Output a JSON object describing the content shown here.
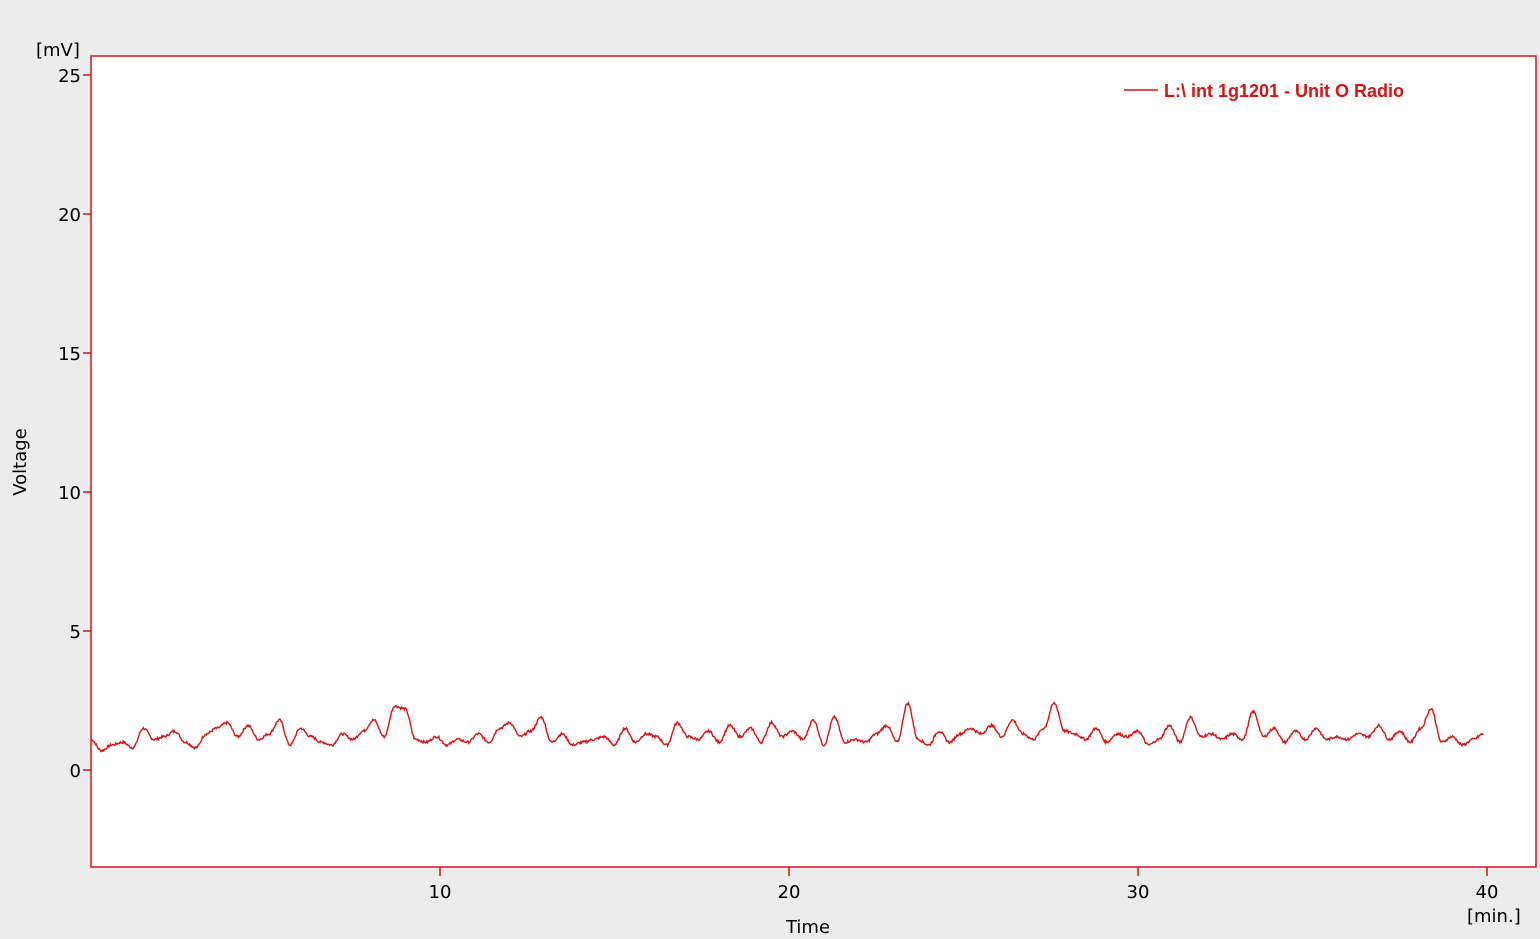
{
  "chart_data": {
    "type": "line",
    "xlabel": "Time",
    "ylabel": "Voltage",
    "x_unit": "[min.]",
    "y_unit": "[mV]",
    "xlim": [
      0,
      40
    ],
    "ylim": [
      -3.5,
      25.8
    ],
    "x_ticks": [
      10,
      20,
      30,
      40
    ],
    "y_ticks": [
      0,
      5,
      10,
      15,
      20,
      25
    ],
    "grid": false,
    "legend_position": "top-right",
    "colors": {
      "plot_border": "#dd1111",
      "series": "#dd1111",
      "background": "#ececec",
      "plot_area": "#ffffff"
    },
    "series": [
      {
        "name": "L:\\ int 1g1201 - Unit O Radio",
        "x": [
          0,
          0.3,
          0.6,
          0.9,
          1.2,
          1.5,
          1.8,
          2.1,
          2.4,
          2.7,
          3.0,
          3.3,
          3.6,
          3.9,
          4.2,
          4.5,
          4.8,
          5.1,
          5.4,
          5.7,
          6.0,
          6.3,
          6.6,
          6.9,
          7.2,
          7.5,
          7.8,
          8.1,
          8.4,
          8.7,
          9.0,
          9.3,
          9.6,
          9.9,
          10.2,
          10.5,
          10.8,
          11.1,
          11.4,
          11.7,
          12.0,
          12.3,
          12.6,
          12.9,
          13.2,
          13.5,
          13.8,
          14.1,
          14.4,
          14.7,
          15.0,
          15.3,
          15.6,
          15.9,
          16.2,
          16.5,
          16.8,
          17.1,
          17.4,
          17.7,
          18.0,
          18.3,
          18.6,
          18.9,
          19.2,
          19.5,
          19.8,
          20.1,
          20.4,
          20.7,
          21.0,
          21.3,
          21.6,
          21.9,
          22.2,
          22.5,
          22.8,
          23.1,
          23.4,
          23.7,
          24.0,
          24.3,
          24.6,
          24.9,
          25.2,
          25.5,
          25.8,
          26.1,
          26.4,
          26.7,
          27.0,
          27.3,
          27.6,
          27.9,
          28.2,
          28.5,
          28.8,
          29.1,
          29.4,
          29.7,
          30.0,
          30.3,
          30.6,
          30.9,
          31.2,
          31.5,
          31.8,
          32.1,
          32.4,
          32.7,
          33.0,
          33.3,
          33.6,
          33.9,
          34.2,
          34.5,
          34.8,
          35.1,
          35.4,
          35.7,
          36.0,
          36.3,
          36.6,
          36.9,
          37.2,
          37.5,
          37.8,
          38.1,
          38.4,
          38.7,
          39.0,
          39.3,
          39.6,
          39.9
        ],
        "y": [
          1.1,
          0.7,
          0.9,
          1.0,
          0.8,
          1.5,
          1.1,
          1.2,
          1.4,
          1.0,
          0.8,
          1.3,
          1.5,
          1.7,
          1.2,
          1.6,
          1.1,
          1.3,
          1.8,
          0.9,
          1.5,
          1.2,
          1.0,
          0.9,
          1.3,
          1.1,
          1.4,
          1.8,
          1.2,
          2.3,
          2.2,
          1.1,
          1.0,
          1.2,
          0.9,
          1.1,
          1.0,
          1.3,
          1.0,
          1.5,
          1.7,
          1.2,
          1.4,
          1.9,
          1.0,
          1.3,
          0.9,
          1.0,
          1.1,
          1.2,
          0.9,
          1.5,
          1.0,
          1.3,
          1.2,
          0.9,
          1.7,
          1.2,
          1.1,
          1.4,
          1.0,
          1.6,
          1.2,
          1.5,
          1.0,
          1.7,
          1.2,
          1.4,
          1.1,
          1.8,
          0.9,
          1.9,
          1.0,
          1.1,
          1.0,
          1.3,
          1.6,
          1.0,
          2.4,
          1.1,
          0.9,
          1.4,
          1.0,
          1.3,
          1.5,
          1.3,
          1.6,
          1.2,
          1.8,
          1.3,
          1.1,
          1.5,
          2.4,
          1.4,
          1.3,
          1.1,
          1.5,
          1.0,
          1.3,
          1.2,
          1.4,
          0.9,
          1.1,
          1.6,
          1.0,
          1.9,
          1.2,
          1.3,
          1.1,
          1.3,
          1.1,
          2.1,
          1.2,
          1.5,
          1.0,
          1.4,
          1.1,
          1.5,
          1.1,
          1.2,
          1.1,
          1.3,
          1.2,
          1.6,
          1.1,
          1.4,
          1.0,
          1.5,
          2.2,
          1.0,
          1.2,
          0.9,
          1.1,
          1.3
        ]
      }
    ]
  }
}
